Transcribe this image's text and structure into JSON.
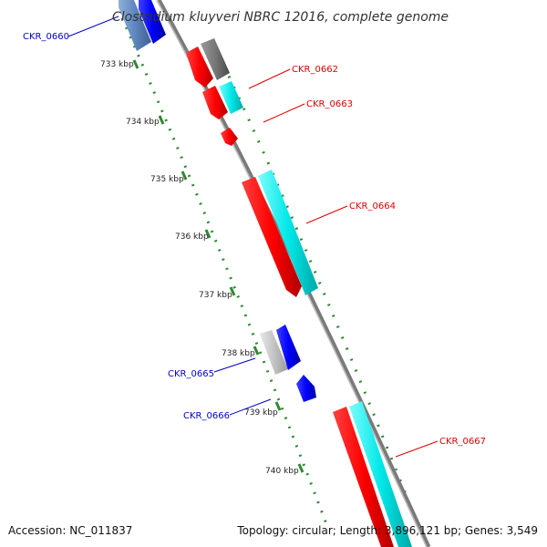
{
  "map": {
    "title": "Clostridium kluyveri NBRC 12016, complete genome",
    "accession_text": "Accession: NC_011837",
    "summary_text": "Topology: circular; Length: 3,896,121 bp; Genes: 3,549"
  },
  "ticks": [
    "733 kbp",
    "734 kbp",
    "735 kbp",
    "736 kbp",
    "737 kbp",
    "738 kbp",
    "739 kbp",
    "740 kbp"
  ],
  "genes": [
    {
      "label": "CKR_0660",
      "color": "#0000cc"
    },
    {
      "label": "CKR_0662",
      "color": "#dd0000"
    },
    {
      "label": "CKR_0663",
      "color": "#dd0000"
    },
    {
      "label": "CKR_0664",
      "color": "#dd0000"
    },
    {
      "label": "CKR_0665",
      "color": "#0000cc"
    },
    {
      "label": "CKR_0666",
      "color": "#0000cc"
    },
    {
      "label": "CKR_0667",
      "color": "#dd0000"
    }
  ],
  "colors": {
    "backbone": "#7a7a7a",
    "gene_red": "#ff0000",
    "gene_blue": "#0000ff",
    "cds_cyan": "#00e5e5",
    "cds_gray": "#777777",
    "cds_light_gray": "#bbbbbb",
    "tick_green": "#2e8b2e"
  }
}
